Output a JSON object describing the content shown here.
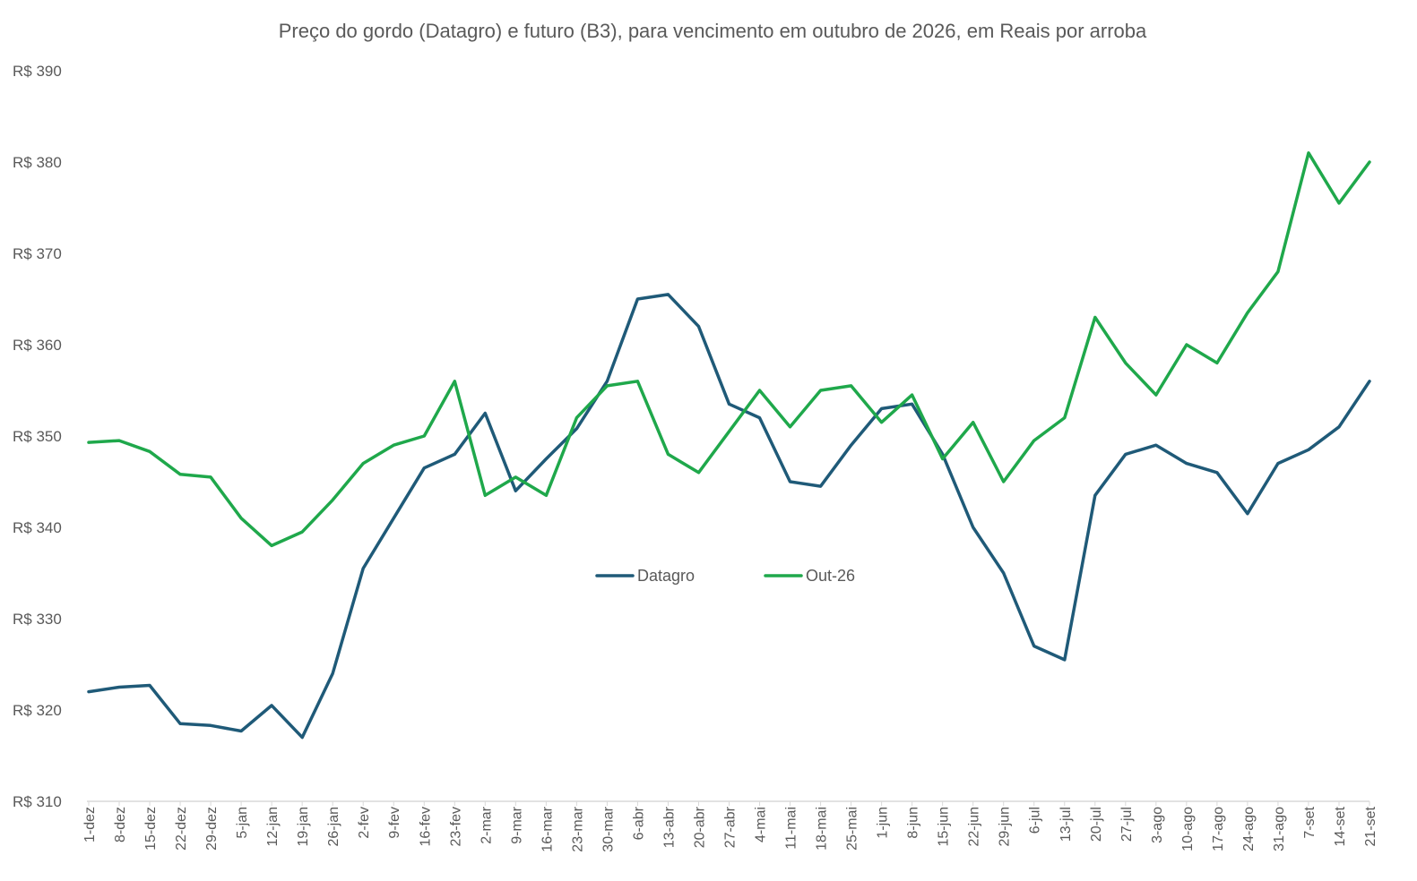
{
  "chart_data": {
    "type": "line",
    "title": "Preço do gordo (Datagro) e futuro (B3), para vencimento em outubro de 2026, em Reais por arroba",
    "xlabel": "",
    "ylabel": "",
    "ylim": [
      310,
      390
    ],
    "yticks": [
      310,
      320,
      330,
      340,
      350,
      360,
      370,
      380,
      390
    ],
    "ytick_prefix": "R$ ",
    "grid": false,
    "legend_position": "center",
    "x_tick_labels": [
      "1-dez",
      "8-dez",
      "15-dez",
      "22-dez",
      "29-dez",
      "5-jan",
      "12-jan",
      "19-jan",
      "26-jan",
      "2-fev",
      "9-fev",
      "16-fev",
      "23-fev",
      "2-mar",
      "9-mar",
      "16-mar",
      "23-mar",
      "30-mar",
      "6-abr",
      "13-abr",
      "20-abr",
      "27-abr",
      "4-mai",
      "11-mai",
      "18-mai",
      "25-mai",
      "1-jun",
      "8-jun",
      "15-jun",
      "22-jun",
      "29-jun",
      "6-jul",
      "13-jul",
      "20-jul",
      "27-jul",
      "3-ago",
      "10-ago",
      "17-ago",
      "24-ago",
      "31-ago",
      "7-set",
      "14-set",
      "21-set"
    ],
    "weekly_points_per_series": 43,
    "series": [
      {
        "name": "Datagro",
        "color": "#1F5A78",
        "values": [
          322,
          322.5,
          322.7,
          318.5,
          318.3,
          317.7,
          320.5,
          317,
          324,
          335.5,
          341,
          346.5,
          348,
          352.5,
          344,
          347.5,
          350.8,
          356,
          365,
          365.5,
          362,
          353.5,
          352,
          345,
          344.5,
          349,
          353,
          353.5,
          348,
          340,
          335,
          327,
          325.5,
          343.5,
          348,
          349,
          347,
          346,
          341.5,
          347,
          348.5,
          351,
          356
        ]
      },
      {
        "name": "Out-26",
        "color": "#1FA84B",
        "values": [
          349.3,
          349.5,
          348.3,
          345.8,
          345.5,
          341,
          338,
          339.5,
          343,
          347,
          349,
          350,
          356,
          343.5,
          345.5,
          343.5,
          352,
          355.5,
          356,
          348,
          346,
          350.5,
          355,
          351,
          355,
          355.5,
          351.5,
          354.5,
          347.5,
          351.5,
          345,
          349.5,
          352,
          363,
          358,
          354.5,
          360,
          358,
          363.5,
          368,
          381,
          375.5,
          380
        ]
      }
    ]
  }
}
